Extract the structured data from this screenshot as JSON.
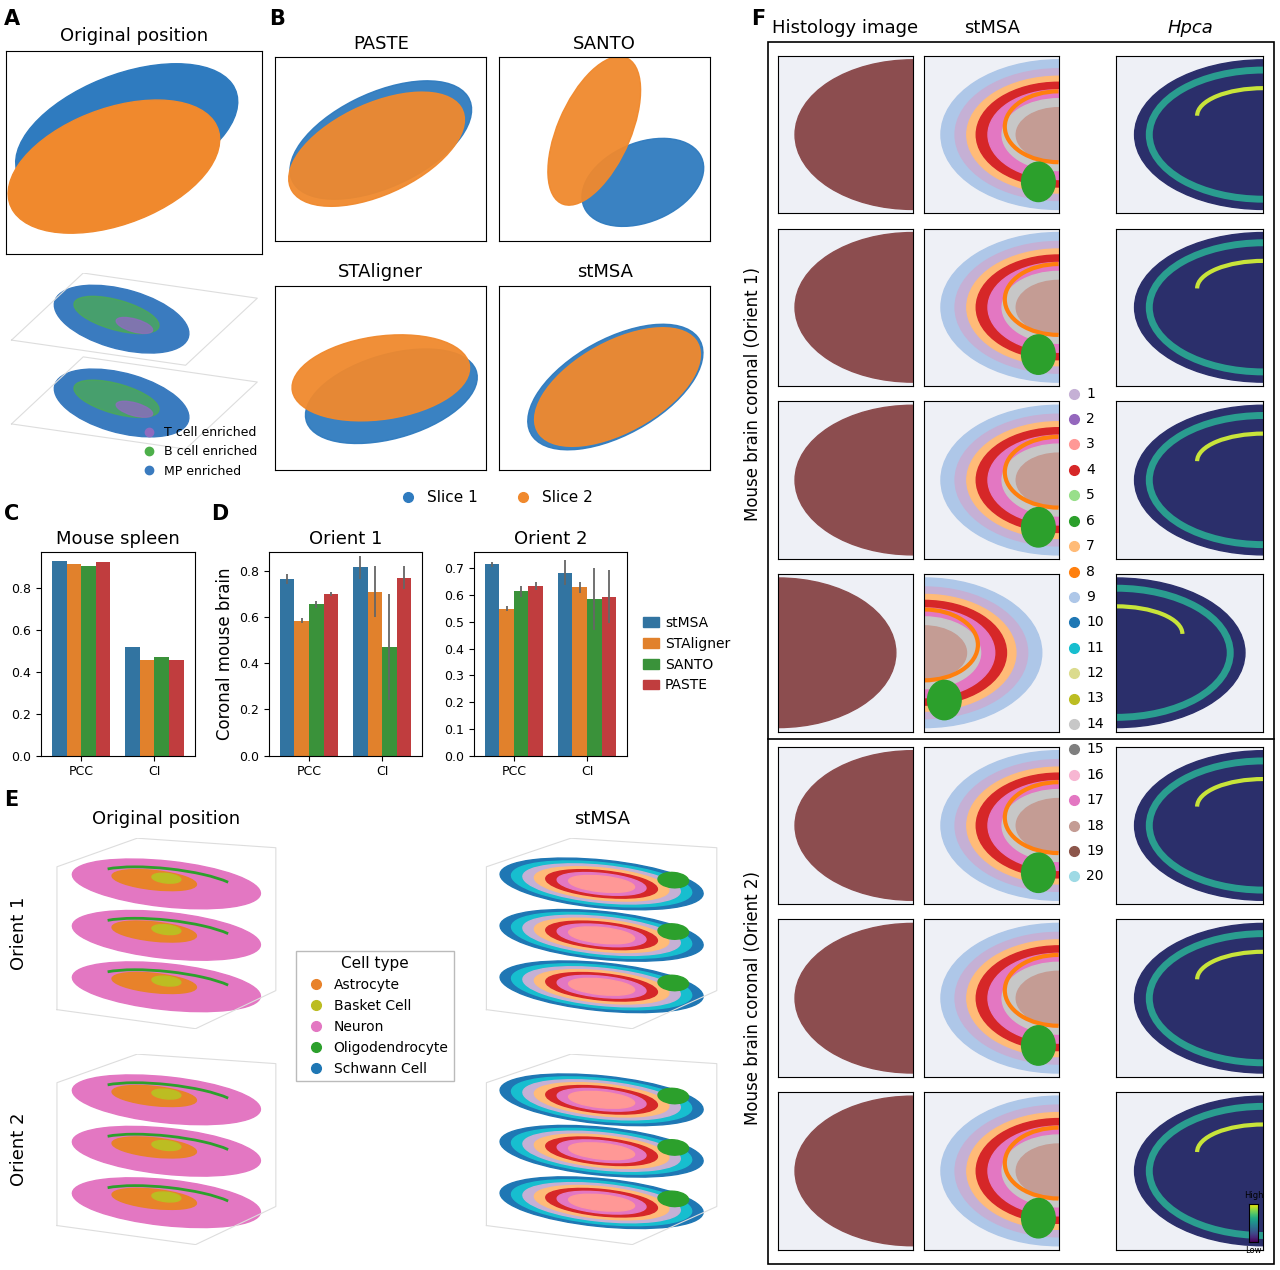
{
  "chart_data": [
    {
      "type": "bar",
      "panel": "C",
      "title": "Mouse spleen",
      "categories": [
        "PCC",
        "CI"
      ],
      "ylim": [
        0,
        0.97
      ],
      "yticks": [
        0.0,
        0.2,
        0.4,
        0.6,
        0.8
      ],
      "series": [
        {
          "name": "stMSA",
          "color": "#3274a1",
          "values": [
            0.93,
            0.52
          ]
        },
        {
          "name": "STAligner",
          "color": "#e1812c",
          "values": [
            0.915,
            0.455
          ]
        },
        {
          "name": "SANTO",
          "color": "#3a923a",
          "values": [
            0.905,
            0.47
          ]
        },
        {
          "name": "PASTE",
          "color": "#c03d3e",
          "values": [
            0.925,
            0.455
          ]
        }
      ]
    },
    {
      "type": "bar",
      "panel": "D",
      "title": "Orient 1",
      "y_label": "Coronal mouse brain",
      "categories": [
        "PCC",
        "CI"
      ],
      "ylim": [
        0,
        0.88
      ],
      "yticks": [
        0.0,
        0.2,
        0.4,
        0.6,
        0.8
      ],
      "series": [
        {
          "name": "stMSA",
          "color": "#3274a1",
          "values": [
            0.765,
            0.815
          ],
          "errors": [
            0.02,
            0.05
          ]
        },
        {
          "name": "STAligner",
          "color": "#e1812c",
          "values": [
            0.585,
            0.71
          ],
          "errors": [
            0.01,
            0.11
          ]
        },
        {
          "name": "SANTO",
          "color": "#3a923a",
          "values": [
            0.655,
            0.47
          ],
          "errors": [
            0.015,
            0.23
          ]
        },
        {
          "name": "PASTE",
          "color": "#c03d3e",
          "values": [
            0.7,
            0.77
          ],
          "errors": [
            0.01,
            0.05
          ]
        }
      ]
    },
    {
      "type": "bar",
      "title": "Orient 2",
      "categories": [
        "PCC",
        "CI"
      ],
      "legend": "center left",
      "ylim": [
        0,
        0.76
      ],
      "yticks": [
        0.0,
        0.1,
        0.2,
        0.3,
        0.4,
        0.5,
        0.6,
        0.7
      ],
      "series": [
        {
          "name": "stMSA",
          "color": "#3274a1",
          "values": [
            0.715,
            0.685
          ],
          "errors": [
            0.008,
            0.045
          ]
        },
        {
          "name": "STAligner",
          "color": "#e1812c",
          "values": [
            0.55,
            0.63
          ],
          "errors": [
            0.008,
            0.02
          ]
        },
        {
          "name": "SANTO",
          "color": "#3a923a",
          "values": [
            0.615,
            0.585
          ],
          "errors": [
            0.02,
            0.115
          ]
        },
        {
          "name": "PASTE",
          "color": "#c03d3e",
          "values": [
            0.635,
            0.595
          ],
          "errors": [
            0.015,
            0.1
          ]
        }
      ]
    }
  ],
  "panels": {
    "A": {
      "letter": "A",
      "title": "Original position",
      "legend": [
        {
          "name": "T cell enriched",
          "color": "#8e6bbf"
        },
        {
          "name": "B cell enriched",
          "color": "#4daf4a"
        },
        {
          "name": "MP enriched",
          "color": "#3a7bbf"
        }
      ]
    },
    "B": {
      "letter": "B",
      "titles": [
        "PASTE",
        "SANTO",
        "STAligner",
        "stMSA"
      ],
      "legend": [
        {
          "name": "Slice 1",
          "color": "#2f7bbf"
        },
        {
          "name": "Slice 2",
          "color": "#f0892d"
        }
      ]
    },
    "E": {
      "letter": "E",
      "titles": [
        "Original position",
        "stMSA"
      ],
      "rows": [
        "Orient 1",
        "Orient 2"
      ],
      "legend_title": "Cell type",
      "legend": [
        {
          "name": "Astrocyte",
          "color": "#e8822a"
        },
        {
          "name": "Basket Cell",
          "color": "#bcbd22"
        },
        {
          "name": "Neuron",
          "color": "#e377c2"
        },
        {
          "name": "Oligodendrocyte",
          "color": "#2ca02c"
        },
        {
          "name": "Schwann Cell",
          "color": "#1f77b4"
        }
      ]
    },
    "F": {
      "letter": "F",
      "columns": [
        "Histology image",
        "stMSA",
        "Hpca"
      ],
      "groups": [
        "Mouse brain coronal (Orient 1)",
        "Mouse brain coronal (Orient 2)"
      ],
      "clusters": [
        {
          "label": "1",
          "color": "#c5b0d5"
        },
        {
          "label": "2",
          "color": "#9467bd"
        },
        {
          "label": "3",
          "color": "#ff9896"
        },
        {
          "label": "4",
          "color": "#d62728"
        },
        {
          "label": "5",
          "color": "#98df8a"
        },
        {
          "label": "6",
          "color": "#2ca02c"
        },
        {
          "label": "7",
          "color": "#ffbb78"
        },
        {
          "label": "8",
          "color": "#ff7f0e"
        },
        {
          "label": "9",
          "color": "#aec7e8"
        },
        {
          "label": "10",
          "color": "#1f77b4"
        },
        {
          "label": "11",
          "color": "#17becf"
        },
        {
          "label": "12",
          "color": "#dbdb8d"
        },
        {
          "label": "13",
          "color": "#bcbd22"
        },
        {
          "label": "14",
          "color": "#c7c7c7"
        },
        {
          "label": "15",
          "color": "#7f7f7f"
        },
        {
          "label": "16",
          "color": "#f7b6d2"
        },
        {
          "label": "17",
          "color": "#e377c2"
        },
        {
          "label": "18",
          "color": "#c49c94"
        },
        {
          "label": "19",
          "color": "#8c564b"
        },
        {
          "label": "20",
          "color": "#9edae5"
        }
      ],
      "colorbar": [
        "High",
        "Low"
      ]
    }
  }
}
